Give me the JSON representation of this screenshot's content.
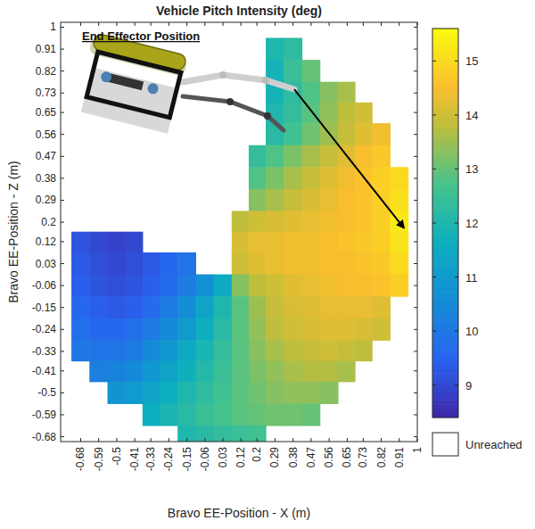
{
  "chart_data": {
    "type": "heatmap",
    "title": "Vehicle Pitch Intensity (deg)",
    "x_label": "Bravo EE-Position - X (m)",
    "y_label": "Bravo EE-Position - Z (m)",
    "annotation": "End Effector Position",
    "missing_label": "Unreached",
    "xlim": [
      -0.78,
      1.0
    ],
    "ylim": [
      -0.7,
      1.02
    ],
    "xticks": [
      -0.68,
      -0.59,
      -0.5,
      -0.41,
      -0.33,
      -0.24,
      -0.15,
      -0.06,
      0.03,
      0.12,
      0.2,
      0.29,
      0.38,
      0.47,
      0.56,
      0.65,
      0.73,
      0.82,
      0.91,
      1
    ],
    "yticks": [
      -0.68,
      -0.59,
      -0.5,
      -0.41,
      -0.33,
      -0.24,
      -0.15,
      -0.06,
      0.03,
      0.12,
      0.2,
      0.29,
      0.38,
      0.47,
      0.56,
      0.65,
      0.73,
      0.82,
      0.91,
      1
    ],
    "x": [
      -0.68,
      -0.59,
      -0.5,
      -0.41,
      -0.33,
      -0.24,
      -0.15,
      -0.06,
      0.03,
      0.12,
      0.2,
      0.29,
      0.38,
      0.47,
      0.56,
      0.65,
      0.73,
      0.82,
      0.91,
      1
    ],
    "y": [
      1,
      0.91,
      0.82,
      0.73,
      0.65,
      0.56,
      0.47,
      0.38,
      0.29,
      0.2,
      0.12,
      0.03,
      -0.06,
      -0.15,
      -0.24,
      -0.33,
      -0.41,
      -0.5,
      -0.59,
      -0.68
    ],
    "cells": [
      [
        null,
        null,
        null,
        null,
        null,
        null,
        null,
        null,
        null,
        null,
        null,
        null,
        null,
        null,
        null,
        null,
        null,
        null,
        null,
        null
      ],
      [
        null,
        null,
        null,
        null,
        null,
        null,
        null,
        null,
        null,
        null,
        null,
        12.0,
        12.3,
        null,
        null,
        null,
        null,
        null,
        null,
        null
      ],
      [
        null,
        null,
        null,
        null,
        null,
        null,
        null,
        null,
        null,
        null,
        null,
        11.8,
        12.5,
        13.0,
        null,
        null,
        null,
        null,
        null,
        null
      ],
      [
        null,
        null,
        null,
        null,
        null,
        null,
        null,
        null,
        null,
        null,
        null,
        11.8,
        12.3,
        12.8,
        13.3,
        13.6,
        null,
        null,
        null,
        null
      ],
      [
        null,
        null,
        null,
        null,
        null,
        null,
        null,
        null,
        null,
        null,
        null,
        12.0,
        12.4,
        12.9,
        13.4,
        13.8,
        14.0,
        null,
        null,
        null
      ],
      [
        null,
        null,
        null,
        null,
        null,
        null,
        null,
        null,
        null,
        null,
        null,
        12.2,
        12.6,
        13.1,
        13.5,
        13.9,
        14.2,
        14.4,
        null,
        null
      ],
      [
        null,
        null,
        null,
        null,
        null,
        null,
        null,
        null,
        null,
        null,
        12.4,
        12.8,
        13.2,
        13.6,
        13.9,
        14.2,
        14.5,
        14.7,
        null,
        null
      ],
      [
        null,
        null,
        null,
        null,
        null,
        null,
        null,
        null,
        null,
        null,
        12.8,
        13.2,
        13.6,
        13.9,
        14.2,
        14.4,
        14.6,
        14.8,
        15.0,
        null
      ],
      [
        null,
        null,
        null,
        null,
        null,
        null,
        null,
        null,
        null,
        null,
        13.3,
        13.6,
        13.9,
        14.1,
        14.3,
        14.5,
        14.6,
        14.8,
        15.1,
        null
      ],
      [
        null,
        null,
        null,
        null,
        null,
        null,
        null,
        null,
        null,
        13.8,
        14.0,
        14.1,
        14.2,
        14.3,
        14.4,
        14.5,
        14.6,
        14.8,
        15.3,
        null
      ],
      [
        9.2,
        9.0,
        8.9,
        9.0,
        null,
        null,
        null,
        null,
        null,
        14.1,
        14.3,
        14.3,
        14.4,
        14.4,
        14.5,
        14.6,
        14.7,
        14.8,
        15.2,
        null
      ],
      [
        9.3,
        9.1,
        9.0,
        9.1,
        9.3,
        9.6,
        9.9,
        null,
        null,
        14.0,
        14.2,
        14.3,
        14.4,
        14.4,
        14.5,
        14.5,
        14.6,
        14.7,
        15.0,
        null
      ],
      [
        9.4,
        9.2,
        9.1,
        9.2,
        9.4,
        9.7,
        10.1,
        10.7,
        11.5,
        13.3,
        13.8,
        14.0,
        14.2,
        14.3,
        14.4,
        14.5,
        14.5,
        14.6,
        14.8,
        null
      ],
      [
        9.6,
        9.4,
        9.3,
        9.4,
        9.7,
        10.1,
        10.6,
        11.3,
        12.0,
        12.9,
        13.5,
        13.9,
        14.1,
        14.2,
        14.3,
        14.3,
        14.3,
        14.2,
        null,
        null
      ],
      [
        9.8,
        9.6,
        9.6,
        9.8,
        10.1,
        10.5,
        11.0,
        11.6,
        12.2,
        12.9,
        13.4,
        13.8,
        14.0,
        14.1,
        14.2,
        14.2,
        14.1,
        14.0,
        null,
        null
      ],
      [
        10.0,
        9.9,
        9.9,
        10.1,
        10.5,
        10.9,
        11.4,
        11.9,
        12.4,
        12.9,
        13.3,
        13.6,
        13.8,
        13.9,
        14.0,
        13.9,
        13.8,
        null,
        null,
        null
      ],
      [
        null,
        10.2,
        10.3,
        10.5,
        10.9,
        11.3,
        11.7,
        12.1,
        12.5,
        12.9,
        13.2,
        13.4,
        13.6,
        13.7,
        13.7,
        13.6,
        null,
        null,
        null,
        null
      ],
      [
        null,
        null,
        10.8,
        11.0,
        11.3,
        11.6,
        12.0,
        12.3,
        12.6,
        12.9,
        13.1,
        13.3,
        13.4,
        13.4,
        13.3,
        null,
        null,
        null,
        null,
        null
      ],
      [
        null,
        null,
        null,
        null,
        11.6,
        11.9,
        12.2,
        12.5,
        12.7,
        12.9,
        13.0,
        13.1,
        13.1,
        13.0,
        null,
        null,
        null,
        null,
        null,
        null
      ],
      [
        null,
        null,
        null,
        null,
        null,
        null,
        12.0,
        12.2,
        12.4,
        12.5,
        12.6,
        null,
        null,
        null,
        null,
        null,
        null,
        null,
        null,
        null
      ]
    ],
    "colorbar_range": [
      8.4,
      15.6
    ],
    "colorbar_ticks": [
      9,
      10,
      11,
      12,
      13,
      14,
      15
    ]
  }
}
